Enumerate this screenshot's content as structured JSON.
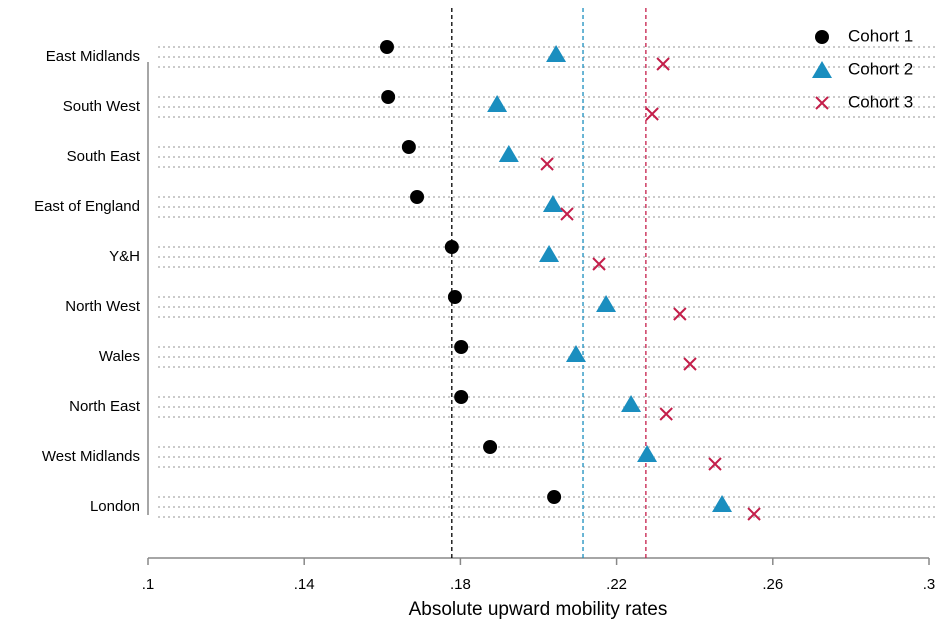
{
  "chart_data": {
    "type": "dot",
    "x_label": "Absolute upward mobility rates",
    "categories": [
      "East Midlands",
      "South West",
      "South East",
      "East of England",
      "Y&H",
      "North West",
      "Wales",
      "North East",
      "West Midlands",
      "London"
    ],
    "series": [
      {
        "name": "Cohort 1",
        "color": "#000000",
        "marker": "circle",
        "vline": 0.1778,
        "values": [
          0.1612,
          0.1615,
          0.1668,
          0.1689,
          0.1778,
          0.1786,
          0.1802,
          0.1802,
          0.1876,
          0.204
        ]
      },
      {
        "name": "Cohort 2",
        "color": "#1a8ebf",
        "marker": "triangle",
        "vline": 0.2114,
        "values": [
          0.2045,
          0.1894,
          0.1924,
          0.2037,
          0.2027,
          0.2173,
          0.2096,
          0.2237,
          0.2278,
          0.247
        ]
      },
      {
        "name": "Cohort 3",
        "color": "#c41e4a",
        "marker": "x",
        "vline": 0.2275,
        "values": [
          0.2319,
          0.2291,
          0.2022,
          0.2073,
          0.2155,
          0.2362,
          0.2388,
          0.2327,
          0.2452,
          0.2552
        ]
      }
    ],
    "xlim": [
      0.1,
      0.3
    ],
    "xticks": [
      {
        "value": 0.1,
        "label": ".1"
      },
      {
        "value": 0.14,
        "label": ".14"
      },
      {
        "value": 0.18,
        "label": ".18"
      },
      {
        "value": 0.22,
        "label": ".22"
      },
      {
        "value": 0.26,
        "label": ".26"
      },
      {
        "value": 0.3,
        "label": ".3"
      }
    ],
    "legend": "top-right"
  }
}
